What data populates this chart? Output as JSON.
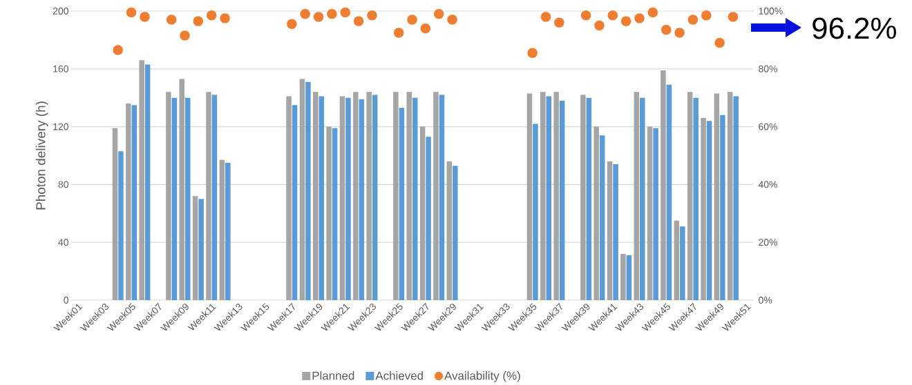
{
  "chart_data": {
    "type": "bar",
    "ylabel": "Photon delivery (h)",
    "categories": [
      "Week01",
      null,
      "Week03",
      null,
      "Week05",
      null,
      "Week07",
      null,
      "Week09",
      null,
      "Week11",
      null,
      "Week13",
      null,
      "Week15",
      null,
      "Week17",
      null,
      "Week19",
      null,
      "Week21",
      null,
      "Week23",
      null,
      "Week25",
      null,
      "Week27",
      null,
      "Week29",
      null,
      "Week31",
      null,
      "Week33",
      null,
      "Week35",
      null,
      "Week37",
      null,
      "Week39",
      null,
      "Week41",
      null,
      "Week43",
      null,
      "Week45",
      null,
      "Week47",
      null,
      "Week49",
      null,
      "Week51"
    ],
    "series": [
      {
        "name": "Planned",
        "color": "#a5a5a5",
        "values": [
          null,
          null,
          null,
          119,
          136,
          166,
          null,
          144,
          153,
          72,
          144,
          97,
          null,
          null,
          null,
          null,
          141,
          153,
          144,
          120,
          141,
          144,
          144,
          null,
          144,
          144,
          120,
          144,
          96,
          null,
          null,
          null,
          null,
          null,
          143,
          144,
          144,
          null,
          142,
          120,
          96,
          32,
          144,
          120,
          159,
          55,
          144,
          126,
          143,
          144,
          null
        ]
      },
      {
        "name": "Achieved",
        "color": "#5b9bd5",
        "values": [
          null,
          null,
          null,
          103,
          135,
          163,
          null,
          140,
          140,
          70,
          142,
          95,
          null,
          null,
          null,
          null,
          135,
          151,
          141,
          119,
          140,
          139,
          142,
          null,
          133,
          140,
          113,
          142,
          93,
          null,
          null,
          null,
          null,
          null,
          122,
          141,
          138,
          null,
          140,
          114,
          94,
          31,
          140,
          119,
          149,
          51,
          140,
          124,
          128,
          141,
          null
        ]
      },
      {
        "name": "Availability (%)",
        "type": "scatter",
        "axis": "y2",
        "marker": "circle",
        "color": "#ed7d31",
        "values": [
          null,
          null,
          null,
          86.5,
          99.5,
          98,
          null,
          97,
          91.5,
          96.5,
          98.5,
          97.5,
          null,
          null,
          null,
          null,
          95.5,
          99,
          98,
          99,
          99.5,
          96.5,
          98.5,
          null,
          92.5,
          97,
          94,
          99,
          97,
          null,
          null,
          null,
          null,
          null,
          85.5,
          98,
          96,
          null,
          98.5,
          95,
          98.5,
          96.5,
          97.5,
          99.5,
          93.5,
          92.5,
          97,
          98.5,
          89,
          98,
          null
        ]
      }
    ],
    "ylim": [
      0,
      200
    ],
    "yticks": [
      0,
      40,
      80,
      120,
      160,
      200
    ],
    "y2lim": [
      0,
      100
    ],
    "y2ticks": [
      {
        "value": 0,
        "label": "0%"
      },
      {
        "value": 20,
        "label": "20%"
      },
      {
        "value": 40,
        "label": "40%"
      },
      {
        "value": 60,
        "label": "60%"
      },
      {
        "value": 80,
        "label": "80%"
      },
      {
        "value": 100,
        "label": "100%"
      }
    ],
    "grid": "y",
    "legend": "bottom",
    "annotations": [
      "96.2%"
    ]
  }
}
